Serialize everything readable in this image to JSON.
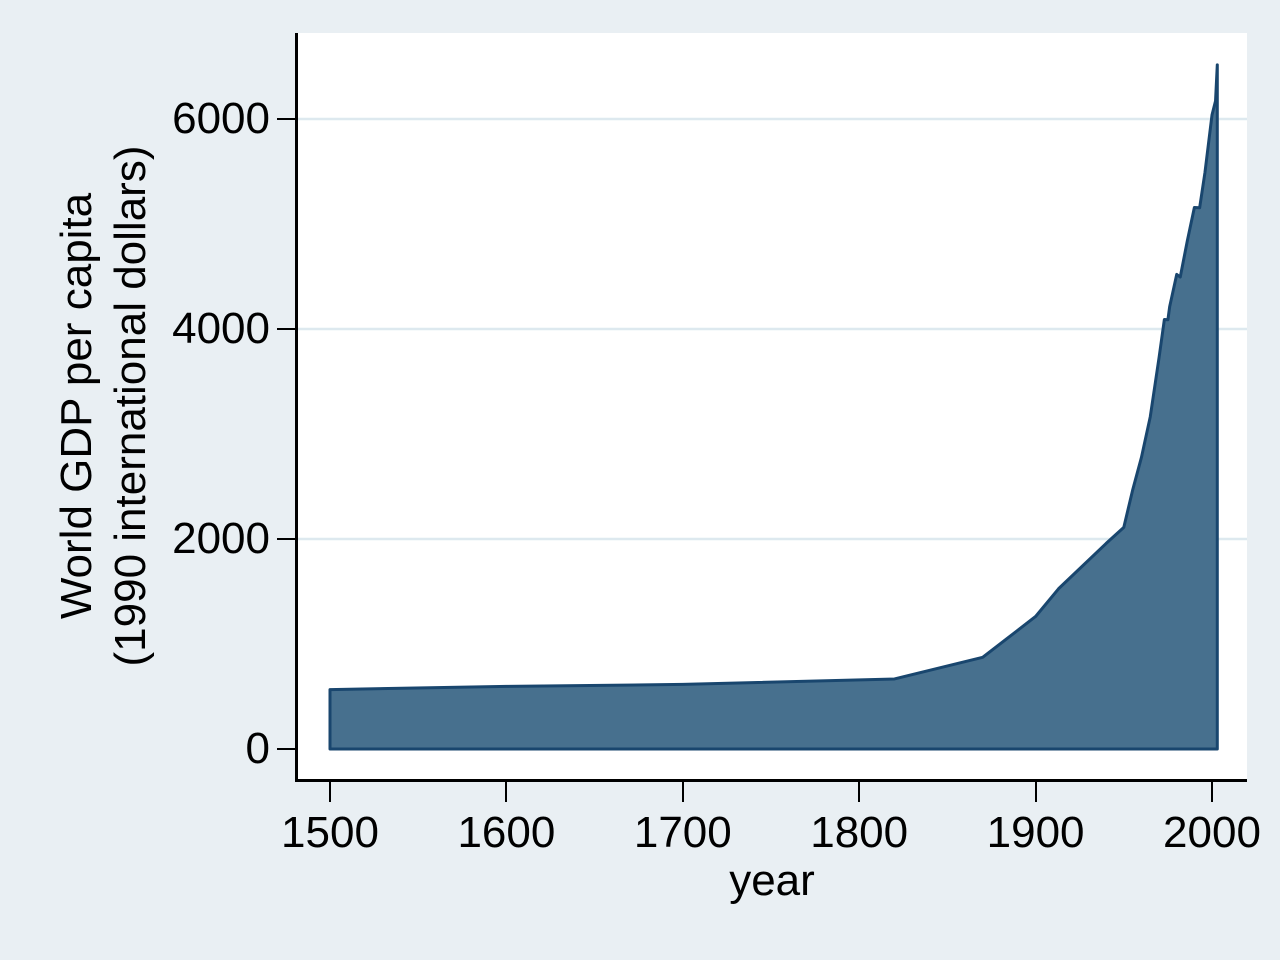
{
  "colors": {
    "page_background": "#e9eff3",
    "plot_background": "#ffffff",
    "gridline": "#dde9ef",
    "axis": "#000000",
    "area_fill": "#47708e",
    "area_stroke": "#19466e"
  },
  "chart_data": {
    "type": "area",
    "title": "",
    "xlabel": "year",
    "ylabel_lines": [
      "World GDP per capita",
      "(1990 international dollars)"
    ],
    "x_ticks": [
      1500,
      1600,
      1700,
      1800,
      1900,
      2000
    ],
    "y_ticks": [
      0,
      2000,
      4000,
      6000
    ],
    "xlim": [
      1500,
      2003
    ],
    "ylim": [
      0,
      6600
    ],
    "grid": "horizontal-only",
    "legend": "none",
    "series": [
      {
        "name": "World GDP per capita (1990 international dollars)",
        "x": [
          1500,
          1600,
          1700,
          1820,
          1870,
          1900,
          1913,
          1940,
          1950,
          1955,
          1960,
          1965,
          1970,
          1973,
          1975,
          1976,
          1980,
          1982,
          1986,
          1990,
          1993,
          1996,
          2000,
          2002,
          2003
        ],
        "y": [
          566,
          596,
          615,
          667,
          873,
          1262,
          1526,
          1958,
          2111,
          2465,
          2777,
          3164,
          3729,
          4091,
          4088,
          4212,
          4520,
          4495,
          4839,
          5157,
          5155,
          5490,
          6038,
          6172,
          6516
        ]
      }
    ]
  }
}
